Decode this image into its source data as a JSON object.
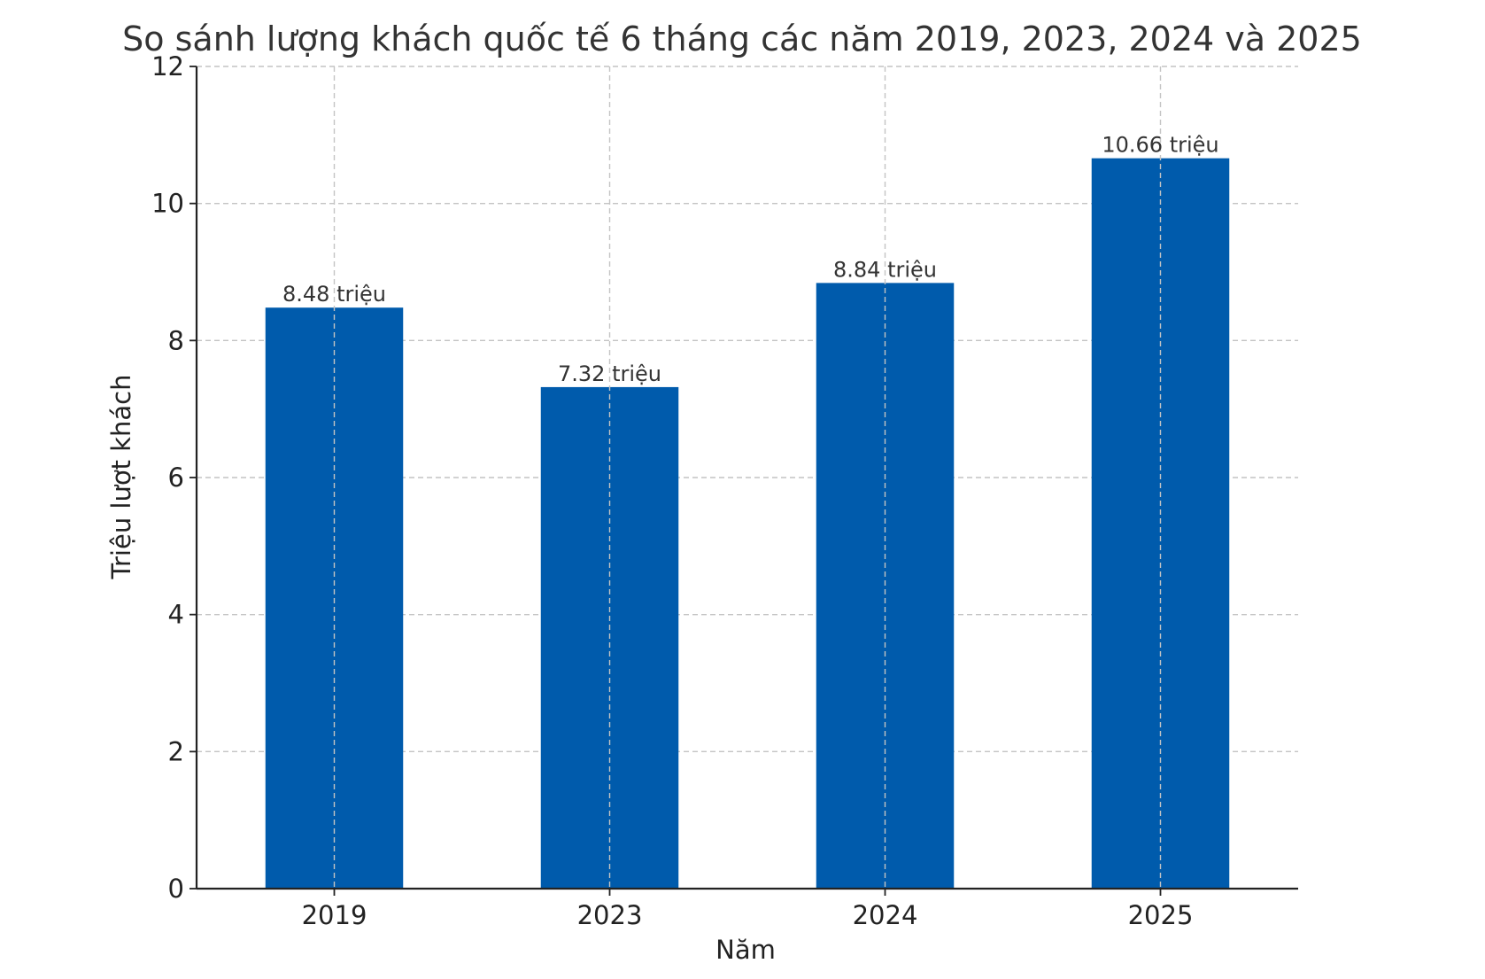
{
  "chart_data": {
    "type": "bar",
    "title": "So sánh lượng khách quốc tế 6 tháng các năm 2019, 2023, 2024 và 2025",
    "xlabel": "Năm",
    "ylabel": "Triệu lượt khách",
    "categories": [
      "2019",
      "2023",
      "2024",
      "2025"
    ],
    "values": [
      8.48,
      7.32,
      8.84,
      10.66
    ],
    "data_labels": [
      "8.48 triệu",
      "7.32 triệu",
      "8.84 triệu",
      "10.66 triệu"
    ],
    "ylim": [
      0,
      12
    ],
    "yticks": [
      0,
      2,
      4,
      6,
      8,
      10,
      12
    ],
    "ytick_labels": [
      "0",
      "2",
      "4",
      "6",
      "8",
      "10",
      "12"
    ],
    "grid": true,
    "bar_color": "#005bac"
  }
}
